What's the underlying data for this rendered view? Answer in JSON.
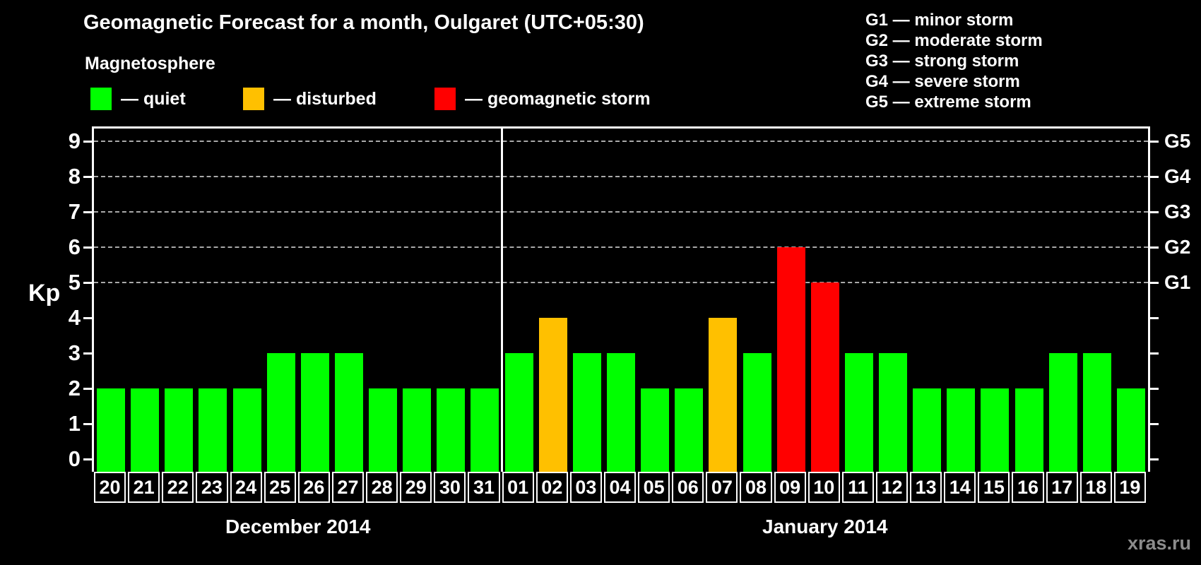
{
  "title": "Geomagnetic Forecast for a month, Oulgaret (UTC+05:30)",
  "subtitle": "Magnetosphere",
  "legend": {
    "items": [
      {
        "key": "quiet",
        "label": "— quiet",
        "color": "#00ff00"
      },
      {
        "key": "disturbed",
        "label": "— disturbed",
        "color": "#ffc000"
      },
      {
        "key": "storm",
        "label": "— geomagnetic storm",
        "color": "#ff0000"
      }
    ]
  },
  "g_legend": [
    "G1 — minor storm",
    "G2 — moderate storm",
    "G3 — strong storm",
    "G4 — severe storm",
    "G5 — extreme storm"
  ],
  "watermark": "xras.ru",
  "chart_data": {
    "type": "bar",
    "title": "Geomagnetic Forecast for a month, Oulgaret (UTC+05:30)",
    "ylabel": "Kp",
    "ylim": [
      0,
      9
    ],
    "yticks": [
      "0",
      "1",
      "2",
      "3",
      "4",
      "5",
      "6",
      "7",
      "8",
      "9"
    ],
    "grid_levels": [
      5,
      6,
      7,
      8,
      9
    ],
    "grid_style": "dashed",
    "legend_position": "top",
    "right_axis_labels": [
      {
        "label": "G1",
        "kp": 5
      },
      {
        "label": "G2",
        "kp": 6
      },
      {
        "label": "G3",
        "kp": 7
      },
      {
        "label": "G4",
        "kp": 8
      },
      {
        "label": "G5",
        "kp": 9
      }
    ],
    "status_colors": {
      "quiet": "#00ff00",
      "disturbed": "#ffc000",
      "storm": "#ff0000"
    },
    "groups": [
      {
        "key": "dec",
        "label": "December 2014",
        "days": [
          "20",
          "21",
          "22",
          "23",
          "24",
          "25",
          "26",
          "27",
          "28",
          "29",
          "30",
          "31"
        ],
        "values": [
          2,
          2,
          2,
          2,
          2,
          3,
          3,
          3,
          2,
          2,
          2,
          2
        ],
        "statuses": [
          "quiet",
          "quiet",
          "quiet",
          "quiet",
          "quiet",
          "quiet",
          "quiet",
          "quiet",
          "quiet",
          "quiet",
          "quiet",
          "quiet"
        ]
      },
      {
        "key": "jan",
        "label": "January 2014",
        "days": [
          "01",
          "02",
          "03",
          "04",
          "05",
          "06",
          "07",
          "08",
          "09",
          "10",
          "11",
          "12",
          "13",
          "14",
          "15",
          "16",
          "17",
          "18",
          "19"
        ],
        "values": [
          3,
          4,
          3,
          3,
          2,
          2,
          4,
          3,
          6,
          5,
          3,
          3,
          2,
          2,
          2,
          2,
          3,
          3,
          2
        ],
        "statuses": [
          "quiet",
          "disturbed",
          "quiet",
          "quiet",
          "quiet",
          "quiet",
          "disturbed",
          "quiet",
          "storm",
          "storm",
          "quiet",
          "quiet",
          "quiet",
          "quiet",
          "quiet",
          "quiet",
          "quiet",
          "quiet",
          "quiet"
        ]
      }
    ]
  }
}
